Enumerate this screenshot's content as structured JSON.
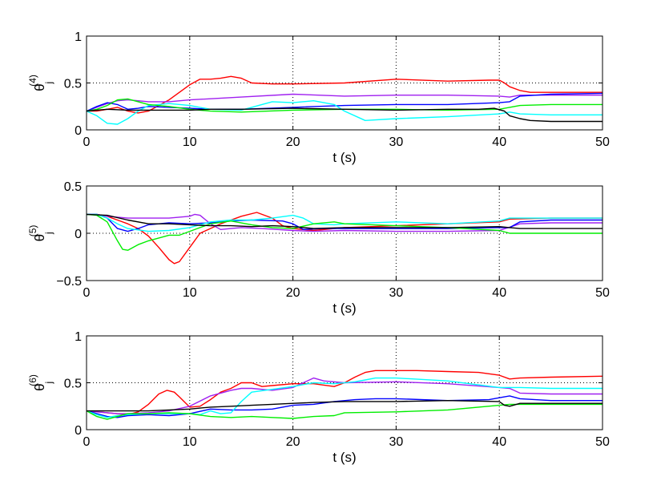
{
  "chart_data": [
    {
      "type": "line",
      "xlabel": "t (s)",
      "ylabel": {
        "base": "θ",
        "sub": "j",
        "sup": "(4)"
      },
      "xlim": [
        0,
        50
      ],
      "ylim": [
        0,
        1
      ],
      "xticks": [
        "0",
        "10",
        "20",
        "30",
        "40",
        "50"
      ],
      "yticks": [
        "0",
        "0.5",
        "1"
      ],
      "grid": "dotted at x ticks and middle y tick",
      "series": [
        {
          "color": "#ff0000",
          "x": [
            0,
            1,
            2,
            3,
            4,
            5,
            6,
            7,
            8,
            9,
            10,
            11,
            12,
            13,
            14,
            15,
            16,
            18,
            20,
            25,
            30,
            35,
            39,
            40,
            40.5,
            41,
            42,
            43,
            45,
            50
          ],
          "y": [
            0.2,
            0.2,
            0.22,
            0.24,
            0.2,
            0.18,
            0.2,
            0.26,
            0.32,
            0.4,
            0.48,
            0.54,
            0.54,
            0.55,
            0.57,
            0.55,
            0.5,
            0.49,
            0.49,
            0.5,
            0.54,
            0.52,
            0.53,
            0.53,
            0.5,
            0.46,
            0.42,
            0.4,
            0.4,
            0.4
          ]
        },
        {
          "color": "#a020f0",
          "x": [
            0,
            1,
            2,
            3,
            4,
            5,
            6,
            8,
            10,
            15,
            20,
            25,
            30,
            35,
            40,
            41,
            42,
            45,
            50
          ],
          "y": [
            0.2,
            0.24,
            0.28,
            0.31,
            0.32,
            0.31,
            0.3,
            0.3,
            0.32,
            0.35,
            0.38,
            0.36,
            0.37,
            0.37,
            0.36,
            0.35,
            0.37,
            0.37,
            0.37
          ]
        },
        {
          "color": "#0000ff",
          "x": [
            0,
            1,
            2,
            3,
            4,
            5,
            6,
            8,
            10,
            12,
            15,
            20,
            25,
            30,
            35,
            40,
            41,
            42,
            45,
            50
          ],
          "y": [
            0.2,
            0.25,
            0.29,
            0.27,
            0.22,
            0.23,
            0.25,
            0.24,
            0.23,
            0.22,
            0.22,
            0.24,
            0.26,
            0.27,
            0.27,
            0.29,
            0.3,
            0.36,
            0.38,
            0.39
          ]
        },
        {
          "color": "#00ffff",
          "x": [
            0,
            1,
            2,
            3,
            4,
            5,
            6,
            8,
            10,
            12,
            15,
            18,
            20,
            22,
            24,
            25,
            27,
            30,
            35,
            40,
            41,
            42,
            45,
            50
          ],
          "y": [
            0.2,
            0.15,
            0.07,
            0.06,
            0.12,
            0.2,
            0.26,
            0.28,
            0.26,
            0.22,
            0.21,
            0.3,
            0.29,
            0.31,
            0.27,
            0.2,
            0.1,
            0.12,
            0.14,
            0.17,
            0.19,
            0.17,
            0.16,
            0.16
          ]
        },
        {
          "color": "#00ee00",
          "x": [
            0,
            1,
            2,
            3,
            4,
            5,
            6,
            8,
            10,
            12,
            15,
            20,
            25,
            30,
            35,
            40,
            41,
            42,
            45,
            50
          ],
          "y": [
            0.2,
            0.22,
            0.26,
            0.32,
            0.33,
            0.3,
            0.27,
            0.25,
            0.22,
            0.2,
            0.19,
            0.21,
            0.22,
            0.22,
            0.21,
            0.22,
            0.24,
            0.26,
            0.27,
            0.27
          ]
        },
        {
          "color": "#000000",
          "x": [
            0,
            2,
            4,
            6,
            8,
            10,
            12,
            15,
            20,
            25,
            30,
            35,
            38,
            39.5,
            40.5,
            41,
            42,
            43,
            45,
            50
          ],
          "y": [
            0.2,
            0.22,
            0.21,
            0.21,
            0.21,
            0.21,
            0.22,
            0.22,
            0.23,
            0.22,
            0.21,
            0.22,
            0.22,
            0.23,
            0.2,
            0.15,
            0.12,
            0.1,
            0.09,
            0.09
          ]
        }
      ]
    },
    {
      "type": "line",
      "xlabel": "t (s)",
      "ylabel": {
        "base": "θ",
        "sub": "j",
        "sup": "(5)"
      },
      "xlim": [
        0,
        50
      ],
      "ylim": [
        -0.5,
        0.5
      ],
      "xticks": [
        "0",
        "10",
        "20",
        "30",
        "40",
        "50"
      ],
      "yticks": [
        "−0.5",
        "0",
        "0.5"
      ],
      "grid": "dotted at x ticks and middle y tick",
      "series": [
        {
          "color": "#ff0000",
          "x": [
            0,
            1,
            2,
            3,
            4,
            5,
            6,
            7,
            8,
            8.5,
            9,
            10,
            11,
            12,
            13,
            15,
            16.5,
            18,
            19,
            20,
            22,
            25,
            30,
            35,
            40,
            41,
            45,
            50
          ],
          "y": [
            0.2,
            0.2,
            0.18,
            0.14,
            0.1,
            0.05,
            -0.03,
            -0.15,
            -0.28,
            -0.32,
            -0.3,
            -0.15,
            0,
            0.05,
            0.1,
            0.18,
            0.22,
            0.16,
            0.08,
            0.05,
            0.03,
            0.06,
            0.08,
            0.1,
            0.12,
            0.15,
            0.16,
            0.16
          ]
        },
        {
          "color": "#a020f0",
          "x": [
            0,
            1,
            2,
            3,
            4,
            6,
            8,
            10,
            10.5,
            11,
            12,
            13,
            14,
            15,
            17,
            20,
            22,
            25,
            30,
            35,
            40,
            42,
            45,
            50
          ],
          "y": [
            0.2,
            0.2,
            0.18,
            0.17,
            0.16,
            0.16,
            0.16,
            0.18,
            0.2,
            0.19,
            0.1,
            0.04,
            0.05,
            0.06,
            0.05,
            0.03,
            0.02,
            0.03,
            0.02,
            0.02,
            0.03,
            0.1,
            0.11,
            0.11
          ]
        },
        {
          "color": "#0000ff",
          "x": [
            0,
            1,
            2,
            3,
            4,
            5,
            6,
            8,
            10,
            12,
            14,
            16,
            19,
            20,
            21,
            23,
            25,
            30,
            35,
            40,
            41,
            42,
            45,
            50
          ],
          "y": [
            0.2,
            0.2,
            0.16,
            0.05,
            0.02,
            0.05,
            0.09,
            0.11,
            0.1,
            0.11,
            0.13,
            0.14,
            0.13,
            0.1,
            0.04,
            0.05,
            0.05,
            0.05,
            0.05,
            0.06,
            0.06,
            0.12,
            0.14,
            0.14
          ]
        },
        {
          "color": "#00ffff",
          "x": [
            0,
            1,
            2,
            3,
            4,
            6,
            8,
            10,
            12,
            14,
            16,
            18,
            20,
            21,
            22,
            24,
            25,
            30,
            35,
            40,
            41,
            45,
            50
          ],
          "y": [
            0.2,
            0.2,
            0.16,
            0.1,
            0.05,
            0.02,
            0.03,
            0.06,
            0.12,
            0.14,
            0.14,
            0.16,
            0.19,
            0.16,
            0.1,
            0.09,
            0.1,
            0.12,
            0.1,
            0.13,
            0.16,
            0.16,
            0.16
          ]
        },
        {
          "color": "#00ee00",
          "x": [
            0,
            1,
            2,
            3,
            3.5,
            4,
            5,
            6,
            7,
            8,
            9,
            10,
            11,
            12,
            14,
            16,
            18,
            20,
            22,
            24,
            25,
            30,
            35,
            40,
            41,
            45,
            50
          ],
          "y": [
            0.2,
            0.19,
            0.12,
            -0.08,
            -0.17,
            -0.18,
            -0.12,
            -0.08,
            -0.05,
            -0.02,
            -0.02,
            0.02,
            0.06,
            0.1,
            0.13,
            0.09,
            0.06,
            0.05,
            0.1,
            0.12,
            0.1,
            0.08,
            0.06,
            0.03,
            0,
            0,
            0
          ]
        },
        {
          "color": "#000000",
          "x": [
            0,
            2,
            4,
            6,
            8,
            10,
            12,
            14,
            16,
            18,
            20,
            22,
            25,
            30,
            35,
            40,
            41,
            42,
            45,
            50
          ],
          "y": [
            0.2,
            0.19,
            0.14,
            0.1,
            0.1,
            0.09,
            0.08,
            0.08,
            0.07,
            0.08,
            0.07,
            0.05,
            0.06,
            0.06,
            0.06,
            0.07,
            0.06,
            0.05,
            0.05,
            0.05
          ]
        }
      ]
    },
    {
      "type": "line",
      "xlabel": "t (s)",
      "ylabel": {
        "base": "θ",
        "sub": "j",
        "sup": "(6)"
      },
      "xlim": [
        0,
        50
      ],
      "ylim": [
        0,
        1
      ],
      "xticks": [
        "0",
        "10",
        "20",
        "30",
        "40",
        "50"
      ],
      "yticks": [
        "0",
        "0.5",
        "1"
      ],
      "grid": "dotted at x ticks and middle y tick",
      "series": [
        {
          "color": "#ff0000",
          "x": [
            0,
            1,
            2,
            4,
            5,
            6,
            7,
            7.8,
            8.5,
            9,
            10,
            11,
            12,
            13,
            14,
            15,
            16,
            17,
            18,
            20,
            22,
            24,
            25,
            26,
            27,
            28,
            30,
            32,
            35,
            38,
            40,
            41,
            42,
            45,
            50
          ],
          "y": [
            0.2,
            0.19,
            0.18,
            0.16,
            0.19,
            0.27,
            0.38,
            0.42,
            0.4,
            0.35,
            0.24,
            0.25,
            0.32,
            0.4,
            0.44,
            0.5,
            0.5,
            0.46,
            0.47,
            0.49,
            0.49,
            0.46,
            0.5,
            0.56,
            0.61,
            0.63,
            0.63,
            0.63,
            0.62,
            0.61,
            0.58,
            0.54,
            0.55,
            0.56,
            0.57
          ]
        },
        {
          "color": "#a020f0",
          "x": [
            0,
            1,
            2,
            3,
            4,
            6,
            8,
            10,
            12,
            14,
            15,
            16,
            18,
            20,
            21,
            22,
            23,
            25,
            30,
            35,
            40,
            41,
            42,
            45,
            50
          ],
          "y": [
            0.2,
            0.19,
            0.18,
            0.17,
            0.17,
            0.18,
            0.2,
            0.25,
            0.36,
            0.42,
            0.44,
            0.44,
            0.42,
            0.45,
            0.5,
            0.55,
            0.52,
            0.5,
            0.51,
            0.49,
            0.45,
            0.44,
            0.39,
            0.38,
            0.38
          ]
        },
        {
          "color": "#0000ff",
          "x": [
            0,
            1,
            2,
            3,
            4,
            6,
            8,
            10,
            12,
            14,
            16,
            18,
            20,
            22,
            24,
            26,
            28,
            30,
            35,
            39,
            40,
            41,
            42,
            45,
            50
          ],
          "y": [
            0.2,
            0.17,
            0.14,
            0.13,
            0.15,
            0.16,
            0.15,
            0.17,
            0.22,
            0.21,
            0.21,
            0.22,
            0.26,
            0.27,
            0.3,
            0.32,
            0.33,
            0.33,
            0.31,
            0.32,
            0.34,
            0.36,
            0.33,
            0.31,
            0.31
          ]
        },
        {
          "color": "#00ffff",
          "x": [
            0,
            1,
            2,
            3,
            4,
            6,
            8,
            10,
            11,
            12,
            13,
            14,
            15,
            16,
            18,
            20,
            22,
            24,
            26,
            27,
            28,
            30,
            35,
            40,
            42,
            45,
            50
          ],
          "y": [
            0.2,
            0.16,
            0.13,
            0.15,
            0.16,
            0.17,
            0.17,
            0.17,
            0.16,
            0.2,
            0.17,
            0.18,
            0.3,
            0.4,
            0.43,
            0.46,
            0.5,
            0.49,
            0.51,
            0.53,
            0.55,
            0.55,
            0.52,
            0.45,
            0.45,
            0.44,
            0.44
          ]
        },
        {
          "color": "#00ee00",
          "x": [
            0,
            1,
            2,
            3,
            4,
            6,
            8,
            10,
            12,
            14,
            16,
            18,
            20,
            22,
            24,
            25,
            30,
            35,
            40,
            41,
            42,
            45,
            50
          ],
          "y": [
            0.2,
            0.14,
            0.11,
            0.14,
            0.17,
            0.17,
            0.18,
            0.17,
            0.14,
            0.13,
            0.14,
            0.13,
            0.12,
            0.14,
            0.15,
            0.18,
            0.19,
            0.21,
            0.26,
            0.27,
            0.27,
            0.27,
            0.27
          ]
        },
        {
          "color": "#000000",
          "x": [
            0,
            2,
            4,
            6,
            8,
            10,
            12,
            14,
            16,
            18,
            20,
            22,
            25,
            30,
            35,
            40,
            40.5,
            41,
            42,
            45,
            50
          ],
          "y": [
            0.2,
            0.2,
            0.2,
            0.2,
            0.21,
            0.22,
            0.24,
            0.25,
            0.26,
            0.27,
            0.28,
            0.29,
            0.3,
            0.3,
            0.31,
            0.3,
            0.26,
            0.25,
            0.28,
            0.28,
            0.28
          ]
        }
      ]
    }
  ]
}
